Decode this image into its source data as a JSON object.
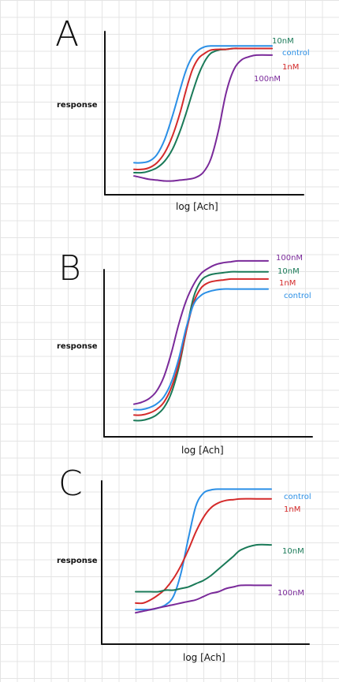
{
  "chart_data": [
    {
      "type": "line",
      "panel": "A",
      "xlabel": "log [Ach]",
      "ylabel": "response",
      "ylim": [
        0,
        1
      ],
      "grid": false,
      "series": [
        {
          "name": "10nM",
          "color": "#1a7a58",
          "x": [
            0,
            0.5,
            1,
            1.5,
            2,
            2.5,
            3,
            3.4,
            3.8,
            4.2,
            4.6,
            5,
            5.5,
            6,
            6.5,
            7,
            8,
            9
          ],
          "y": [
            0.1,
            0.1,
            0.11,
            0.13,
            0.17,
            0.24,
            0.35,
            0.46,
            0.58,
            0.69,
            0.77,
            0.82,
            0.84,
            0.845,
            0.85,
            0.85,
            0.85,
            0.85
          ]
        },
        {
          "name": "control",
          "color": "#2a8fe6",
          "x": [
            0,
            0.5,
            1,
            1.5,
            2,
            2.5,
            3,
            3.4,
            3.8,
            4.2,
            4.6,
            5,
            5.5,
            6,
            6.5,
            7,
            8,
            9
          ],
          "y": [
            0.16,
            0.16,
            0.17,
            0.21,
            0.3,
            0.44,
            0.6,
            0.72,
            0.8,
            0.84,
            0.86,
            0.865,
            0.865,
            0.865,
            0.865,
            0.865,
            0.865,
            0.865
          ]
        },
        {
          "name": "1nM",
          "color": "#d42a2a",
          "x": [
            0,
            0.5,
            1,
            1.5,
            2,
            2.5,
            3,
            3.4,
            3.8,
            4.2,
            4.6,
            5,
            5.5,
            6,
            6.5,
            7,
            8,
            9
          ],
          "y": [
            0.12,
            0.12,
            0.13,
            0.16,
            0.22,
            0.32,
            0.46,
            0.6,
            0.72,
            0.79,
            0.82,
            0.84,
            0.845,
            0.845,
            0.85,
            0.85,
            0.85,
            0.85
          ]
        },
        {
          "name": "100nM",
          "color": "#7a2a9a",
          "x": [
            0,
            0.5,
            1,
            1.5,
            2,
            2.5,
            3,
            3.5,
            4,
            4.5,
            5,
            5.5,
            6,
            6.5,
            7,
            7.5,
            8,
            9
          ],
          "y": [
            0.08,
            0.07,
            0.06,
            0.055,
            0.05,
            0.05,
            0.055,
            0.06,
            0.07,
            0.1,
            0.18,
            0.35,
            0.58,
            0.72,
            0.78,
            0.8,
            0.81,
            0.81
          ]
        }
      ]
    },
    {
      "type": "line",
      "panel": "B",
      "xlabel": "log [Ach]",
      "ylabel": "response",
      "ylim": [
        0,
        1
      ],
      "grid": false,
      "series": [
        {
          "name": "100nM",
          "color": "#7a2a9a",
          "x": [
            0,
            0.5,
            1,
            1.5,
            2,
            2.5,
            3,
            3.5,
            4,
            4.5,
            5,
            5.5,
            6,
            6.5,
            7,
            8,
            9
          ],
          "y": [
            0.18,
            0.19,
            0.21,
            0.25,
            0.33,
            0.46,
            0.62,
            0.75,
            0.84,
            0.9,
            0.93,
            0.95,
            0.96,
            0.965,
            0.97,
            0.97,
            0.97
          ]
        },
        {
          "name": "10nM",
          "color": "#1a7a58",
          "x": [
            0,
            0.5,
            1,
            1.5,
            2,
            2.5,
            3,
            3.5,
            4,
            4.5,
            5,
            5.5,
            6,
            6.5,
            7,
            8,
            9
          ],
          "y": [
            0.09,
            0.09,
            0.1,
            0.12,
            0.16,
            0.24,
            0.38,
            0.58,
            0.77,
            0.86,
            0.89,
            0.9,
            0.905,
            0.91,
            0.91,
            0.91,
            0.91
          ]
        },
        {
          "name": "1nM",
          "color": "#d42a2a",
          "x": [
            0,
            0.5,
            1,
            1.5,
            2,
            2.5,
            3,
            3.5,
            4,
            4.5,
            5,
            5.5,
            6,
            6.5,
            7,
            8,
            9
          ],
          "y": [
            0.12,
            0.12,
            0.13,
            0.15,
            0.19,
            0.27,
            0.4,
            0.58,
            0.74,
            0.82,
            0.85,
            0.86,
            0.865,
            0.87,
            0.87,
            0.87,
            0.87
          ]
        },
        {
          "name": "control",
          "color": "#2a8fe6",
          "x": [
            0,
            0.5,
            1,
            1.5,
            2,
            2.5,
            3,
            3.5,
            4,
            4.5,
            5,
            5.5,
            6,
            6.5,
            7,
            8,
            9
          ],
          "y": [
            0.15,
            0.15,
            0.16,
            0.18,
            0.22,
            0.3,
            0.43,
            0.6,
            0.73,
            0.78,
            0.8,
            0.81,
            0.815,
            0.815,
            0.815,
            0.815,
            0.815
          ]
        }
      ]
    },
    {
      "type": "line",
      "panel": "C",
      "xlabel": "log [Ach]",
      "ylabel": "response",
      "ylim": [
        0,
        1
      ],
      "grid": false,
      "series": [
        {
          "name": "control",
          "color": "#2a8fe6",
          "x": [
            0,
            0.5,
            1,
            1.5,
            2,
            2.5,
            3,
            3.5,
            4,
            4.5,
            5,
            5.5,
            6,
            6.5,
            7,
            8,
            9
          ],
          "y": [
            0.18,
            0.18,
            0.18,
            0.19,
            0.21,
            0.26,
            0.4,
            0.62,
            0.82,
            0.9,
            0.92,
            0.925,
            0.925,
            0.925,
            0.925,
            0.925,
            0.925
          ]
        },
        {
          "name": "1nM",
          "color": "#d42a2a",
          "x": [
            0,
            0.5,
            1,
            1.5,
            2,
            2.5,
            3,
            3.5,
            4,
            4.5,
            5,
            5.5,
            6,
            6.5,
            7,
            8,
            9
          ],
          "y": [
            0.22,
            0.22,
            0.24,
            0.27,
            0.31,
            0.37,
            0.45,
            0.55,
            0.66,
            0.75,
            0.81,
            0.84,
            0.855,
            0.86,
            0.865,
            0.865,
            0.865
          ]
        },
        {
          "name": "10nM",
          "color": "#1a7a58",
          "x": [
            0,
            0.5,
            1,
            1.5,
            2,
            2.5,
            3,
            3.5,
            4,
            4.5,
            5,
            5.5,
            6,
            6.5,
            7,
            8,
            9
          ],
          "y": [
            0.29,
            0.29,
            0.29,
            0.29,
            0.3,
            0.3,
            0.31,
            0.32,
            0.34,
            0.36,
            0.39,
            0.43,
            0.47,
            0.51,
            0.55,
            0.58,
            0.58
          ]
        },
        {
          "name": "100nM",
          "color": "#7a2a9a",
          "x": [
            0,
            0.5,
            1,
            1.5,
            2,
            2.5,
            3,
            3.5,
            4,
            4.5,
            5,
            5.5,
            6,
            6.5,
            7,
            8,
            9
          ],
          "y": [
            0.16,
            0.17,
            0.18,
            0.19,
            0.2,
            0.21,
            0.22,
            0.23,
            0.24,
            0.26,
            0.28,
            0.29,
            0.31,
            0.32,
            0.33,
            0.33,
            0.33
          ]
        }
      ]
    }
  ]
}
